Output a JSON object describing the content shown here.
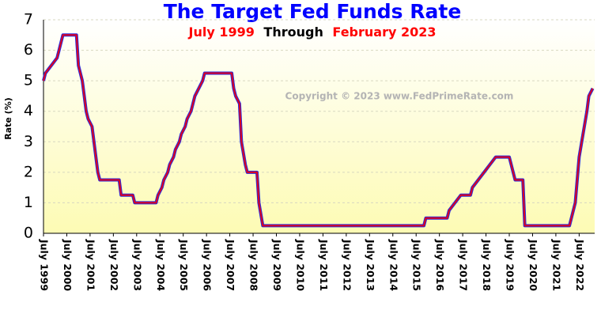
{
  "chart_data": {
    "type": "line",
    "title": "The Target Fed Funds Rate",
    "subtitle": [
      {
        "text": "July 1999",
        "color": "#ff0000"
      },
      {
        "text": "Through",
        "color": "#000000"
      },
      {
        "text": "February 2023",
        "color": "#ff0000"
      }
    ],
    "y_label": "Rate (%)",
    "watermark": "Copyright © 2023 www.FedPrimeRate.com",
    "series": [
      {
        "name": "Target Fed Funds Rate",
        "color": "#e0001b",
        "outline": "#2a2adc",
        "x": [
          "1999-07",
          "1999-08",
          "1999-11",
          "2000-02",
          "2000-03",
          "2000-05",
          "2000-12",
          "2001-01",
          "2001-03",
          "2001-04",
          "2001-05",
          "2001-06",
          "2001-08",
          "2001-09",
          "2001-10",
          "2001-11",
          "2001-12",
          "2002-10",
          "2002-11",
          "2003-05",
          "2003-06",
          "2004-05",
          "2004-06",
          "2004-08",
          "2004-09",
          "2004-11",
          "2004-12",
          "2005-02",
          "2005-03",
          "2005-05",
          "2005-06",
          "2005-08",
          "2005-09",
          "2005-11",
          "2005-12",
          "2006-01",
          "2006-03",
          "2006-05",
          "2006-06",
          "2007-08",
          "2007-09",
          "2007-10",
          "2007-12",
          "2008-01",
          "2008-03",
          "2008-04",
          "2008-09",
          "2008-10",
          "2008-12",
          "2015-11",
          "2015-12",
          "2016-11",
          "2016-12",
          "2017-03",
          "2017-06",
          "2017-11",
          "2017-12",
          "2018-03",
          "2018-06",
          "2018-09",
          "2018-12",
          "2019-07",
          "2019-08",
          "2019-09",
          "2019-10",
          "2020-02",
          "2020-03",
          "2022-02",
          "2022-03",
          "2022-05",
          "2022-06",
          "2022-07",
          "2022-09",
          "2022-11",
          "2022-12",
          "2023-02"
        ],
        "values": [
          5.0,
          5.25,
          5.5,
          5.75,
          6.0,
          6.5,
          6.5,
          5.5,
          5.0,
          4.5,
          4.0,
          3.75,
          3.5,
          3.0,
          2.5,
          2.0,
          1.75,
          1.75,
          1.25,
          1.25,
          1.0,
          1.0,
          1.25,
          1.5,
          1.75,
          2.0,
          2.25,
          2.5,
          2.75,
          3.0,
          3.25,
          3.5,
          3.75,
          4.0,
          4.25,
          4.5,
          4.75,
          5.0,
          5.25,
          5.25,
          4.75,
          4.5,
          4.25,
          3.0,
          2.25,
          2.0,
          2.0,
          1.0,
          0.25,
          0.25,
          0.5,
          0.5,
          0.75,
          1.0,
          1.25,
          1.25,
          1.5,
          1.75,
          2.0,
          2.25,
          2.5,
          2.5,
          2.25,
          2.0,
          1.75,
          1.75,
          0.25,
          0.25,
          0.5,
          1.0,
          1.75,
          2.5,
          3.25,
          4.0,
          4.5,
          4.75
        ]
      }
    ],
    "xlim": [
      "1999-07",
      "2023-03"
    ],
    "xticks": [
      {
        "value": "1999-07",
        "label": "July 1999"
      },
      {
        "value": "2000-07",
        "label": "July 2000"
      },
      {
        "value": "2001-07",
        "label": "July 2001"
      },
      {
        "value": "2002-07",
        "label": "July 2002"
      },
      {
        "value": "2003-07",
        "label": "July 2003"
      },
      {
        "value": "2004-07",
        "label": "July 2004"
      },
      {
        "value": "2005-07",
        "label": "July 2005"
      },
      {
        "value": "2006-07",
        "label": "July 2006"
      },
      {
        "value": "2007-07",
        "label": "July 2007"
      },
      {
        "value": "2008-07",
        "label": "July 2008"
      },
      {
        "value": "2009-07",
        "label": "July 2009"
      },
      {
        "value": "2010-07",
        "label": "July 2010"
      },
      {
        "value": "2011-07",
        "label": "July 2011"
      },
      {
        "value": "2012-07",
        "label": "July 2012"
      },
      {
        "value": "2013-07",
        "label": "July 2013"
      },
      {
        "value": "2014-07",
        "label": "July 2014"
      },
      {
        "value": "2015-07",
        "label": "July 2015"
      },
      {
        "value": "2016-07",
        "label": "July 2016"
      },
      {
        "value": "2017-07",
        "label": "July 2017"
      },
      {
        "value": "2018-07",
        "label": "July 2018"
      },
      {
        "value": "2019-07",
        "label": "July 2019"
      },
      {
        "value": "2020-07",
        "label": "July 2020"
      },
      {
        "value": "2021-07",
        "label": "July 2021"
      },
      {
        "value": "2022-07",
        "label": "July 2022"
      }
    ],
    "ylim": [
      0,
      7
    ],
    "yticks": [
      0,
      1,
      2,
      3,
      4,
      5,
      6,
      7
    ],
    "grid": true,
    "title_color": "#0000ff"
  }
}
